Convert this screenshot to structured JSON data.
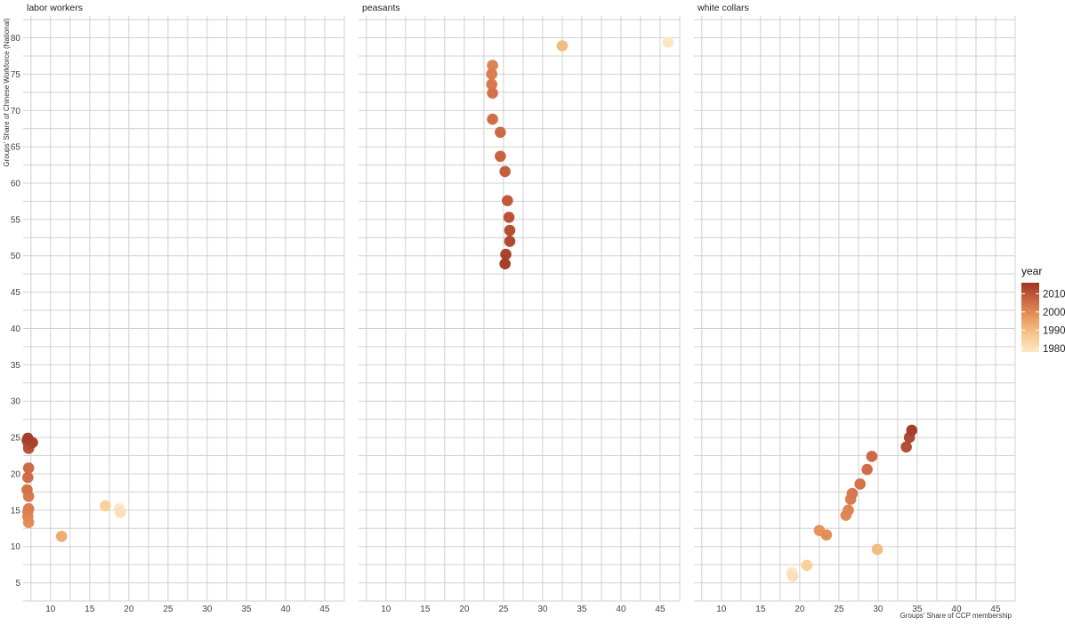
{
  "chart_data": {
    "type": "scatter",
    "facets": [
      "labor workers",
      "peasants",
      "white collars"
    ],
    "xlabel": "Groups' Share of CCP membership",
    "ylabel": "Groups' Share of Chinese Workforce (National)",
    "xlim": [
      6.5,
      47.5
    ],
    "ylim": [
      2.5,
      83
    ],
    "x_ticks": [
      10,
      15,
      20,
      25,
      30,
      35,
      40,
      45
    ],
    "y_ticks": [
      5,
      10,
      15,
      20,
      25,
      30,
      35,
      40,
      45,
      50,
      55,
      60,
      65,
      70,
      75,
      80
    ],
    "grid": true,
    "legend": {
      "title": "year",
      "position": "right",
      "labels": [
        "2010",
        "2000",
        "1990",
        "1980"
      ],
      "range": [
        1978,
        2016
      ],
      "colors": [
        "#fbe7c6",
        "#f5c88d",
        "#e9995d",
        "#cc6645",
        "#9c3422"
      ]
    },
    "series": [
      {
        "facet": "labor workers",
        "points": [
          {
            "x": 18.8,
            "y": 15.2,
            "year": 1978
          },
          {
            "x": 18.9,
            "y": 14.7,
            "year": 1980
          },
          {
            "x": 17.0,
            "y": 15.6,
            "year": 1985
          },
          {
            "x": 11.4,
            "y": 11.4,
            "year": 1993
          },
          {
            "x": 7.2,
            "y": 13.3,
            "year": 1999
          },
          {
            "x": 7.1,
            "y": 14.1,
            "year": 2000
          },
          {
            "x": 7.1,
            "y": 14.8,
            "year": 2001
          },
          {
            "x": 7.2,
            "y": 15.2,
            "year": 2002
          },
          {
            "x": 7.2,
            "y": 16.9,
            "year": 2003
          },
          {
            "x": 7.0,
            "y": 17.8,
            "year": 2004
          },
          {
            "x": 7.1,
            "y": 19.5,
            "year": 2005
          },
          {
            "x": 7.2,
            "y": 20.8,
            "year": 2006
          },
          {
            "x": 7.2,
            "y": 23.5,
            "year": 2010
          },
          {
            "x": 7.2,
            "y": 24.0,
            "year": 2011
          },
          {
            "x": 7.0,
            "y": 24.6,
            "year": 2012
          },
          {
            "x": 7.7,
            "y": 24.3,
            "year": 2013
          },
          {
            "x": 7.1,
            "y": 24.9,
            "year": 2014
          }
        ]
      },
      {
        "facet": "peasants",
        "points": [
          {
            "x": 46.0,
            "y": 79.4,
            "year": 1978
          },
          {
            "x": 32.5,
            "y": 78.9,
            "year": 1990
          },
          {
            "x": 23.6,
            "y": 76.2,
            "year": 2001
          },
          {
            "x": 23.5,
            "y": 75.0,
            "year": 2002
          },
          {
            "x": 23.5,
            "y": 73.6,
            "year": 2003
          },
          {
            "x": 23.6,
            "y": 72.4,
            "year": 2004
          },
          {
            "x": 23.6,
            "y": 68.8,
            "year": 2005
          },
          {
            "x": 24.6,
            "y": 67.0,
            "year": 2006
          },
          {
            "x": 24.6,
            "y": 63.7,
            "year": 2007
          },
          {
            "x": 25.2,
            "y": 61.6,
            "year": 2008
          },
          {
            "x": 25.5,
            "y": 57.6,
            "year": 2009
          },
          {
            "x": 25.7,
            "y": 55.3,
            "year": 2010
          },
          {
            "x": 25.8,
            "y": 53.5,
            "year": 2011
          },
          {
            "x": 25.8,
            "y": 52.0,
            "year": 2012
          },
          {
            "x": 25.3,
            "y": 50.2,
            "year": 2013
          },
          {
            "x": 25.2,
            "y": 48.9,
            "year": 2014
          }
        ]
      },
      {
        "facet": "white collars",
        "points": [
          {
            "x": 19.0,
            "y": 6.4,
            "year": 1978
          },
          {
            "x": 19.1,
            "y": 5.9,
            "year": 1980
          },
          {
            "x": 20.9,
            "y": 7.4,
            "year": 1985
          },
          {
            "x": 29.9,
            "y": 9.6,
            "year": 1990
          },
          {
            "x": 22.5,
            "y": 12.2,
            "year": 1998
          },
          {
            "x": 23.4,
            "y": 11.6,
            "year": 1999
          },
          {
            "x": 25.9,
            "y": 14.3,
            "year": 2000
          },
          {
            "x": 26.2,
            "y": 15.0,
            "year": 2001
          },
          {
            "x": 26.5,
            "y": 16.5,
            "year": 2002
          },
          {
            "x": 26.7,
            "y": 17.3,
            "year": 2003
          },
          {
            "x": 27.7,
            "y": 18.6,
            "year": 2004
          },
          {
            "x": 28.6,
            "y": 20.6,
            "year": 2005
          },
          {
            "x": 29.2,
            "y": 22.4,
            "year": 2006
          },
          {
            "x": 33.6,
            "y": 23.7,
            "year": 2011
          },
          {
            "x": 34.0,
            "y": 25.0,
            "year": 2012
          },
          {
            "x": 34.3,
            "y": 26.0,
            "year": 2014
          }
        ]
      }
    ]
  }
}
